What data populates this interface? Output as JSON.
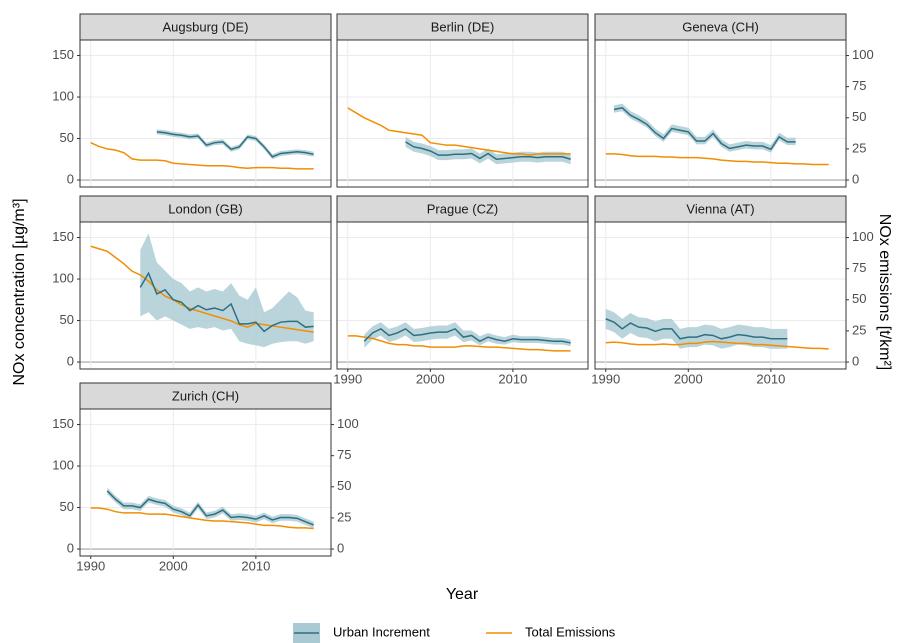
{
  "chart_data": {
    "type": "line",
    "xlabel": "Year",
    "ylabel": "NOx concentration [µg/m³]",
    "y2label": "NOx emissions [t/km²]",
    "xlim": [
      1988.7,
      2019.1
    ],
    "xticks": [
      1990,
      2000,
      2010
    ],
    "ylim": [
      -8.4,
      168.7
    ],
    "yticks": [
      0,
      50,
      100,
      150
    ],
    "y2lim": [
      -5.6,
      112.5
    ],
    "y2ticks": [
      0,
      25,
      50,
      75,
      100
    ],
    "grid": true,
    "legend": "bottom",
    "series": [
      {
        "name": "Urban Increment",
        "color": "#2f6f80",
        "band_color": "#a9c9d3"
      },
      {
        "name": "Total Emissions",
        "color": "#f28e00",
        "axis": "y2"
      }
    ],
    "x": [
      1990,
      1991,
      1992,
      1993,
      1994,
      1995,
      1996,
      1997,
      1998,
      1999,
      2000,
      2001,
      2002,
      2003,
      2004,
      2005,
      2006,
      2007,
      2008,
      2009,
      2010,
      2011,
      2012,
      2013,
      2014,
      2015,
      2016,
      2017
    ],
    "panels": [
      {
        "title": "Augsburg (DE)",
        "values": [
          null,
          null,
          null,
          null,
          null,
          null,
          null,
          null,
          58,
          57,
          55,
          54,
          52,
          53,
          42,
          45,
          46,
          37,
          40,
          52,
          50,
          40,
          28,
          32,
          33,
          34,
          33,
          31
        ],
        "lower": [
          null,
          null,
          null,
          null,
          null,
          null,
          null,
          null,
          55,
          54,
          52,
          51,
          49,
          50,
          39,
          42,
          43,
          34,
          37,
          49,
          47,
          37,
          25,
          29,
          30,
          31,
          30,
          28
        ],
        "upper": [
          null,
          null,
          null,
          null,
          null,
          null,
          null,
          null,
          61,
          60,
          58,
          57,
          55,
          56,
          45,
          48,
          49,
          40,
          43,
          55,
          53,
          43,
          31,
          35,
          36,
          37,
          36,
          34
        ],
        "emissions": [
          30,
          27,
          25,
          24,
          22,
          17,
          16,
          16,
          16,
          15.5,
          13.5,
          13,
          12.5,
          12,
          11.5,
          11.5,
          11.5,
          11,
          10,
          9.5,
          10,
          10,
          10,
          9.5,
          9.5,
          9,
          9,
          9
        ]
      },
      {
        "title": "Berlin (DE)",
        "values": [
          null,
          null,
          null,
          null,
          null,
          null,
          null,
          46,
          40,
          38,
          35,
          30,
          30,
          31,
          31,
          32,
          26,
          32,
          25,
          26,
          27,
          28,
          28,
          27,
          28,
          28,
          28,
          25
        ],
        "lower": [
          null,
          null,
          null,
          null,
          null,
          null,
          null,
          40,
          34,
          32,
          29,
          24,
          24,
          25,
          25,
          26,
          20,
          26,
          19,
          20,
          21,
          22,
          22,
          21,
          22,
          22,
          22,
          19
        ],
        "upper": [
          null,
          null,
          null,
          null,
          null,
          null,
          null,
          52,
          46,
          44,
          41,
          36,
          36,
          37,
          37,
          38,
          32,
          38,
          31,
          32,
          33,
          34,
          34,
          33,
          34,
          34,
          34,
          31
        ],
        "emissions": [
          58,
          54,
          50,
          47,
          44,
          40,
          39,
          38,
          37,
          36,
          30,
          29,
          28,
          28,
          27,
          26,
          25,
          24,
          23,
          22,
          21,
          21,
          20,
          21,
          21,
          21,
          21,
          21
        ]
      },
      {
        "title": "Geneva (CH)",
        "values": [
          null,
          85,
          87,
          78,
          73,
          67,
          57,
          50,
          62,
          60,
          58,
          47,
          47,
          56,
          44,
          38,
          40,
          42,
          41,
          41,
          37,
          52,
          46,
          46,
          null,
          null,
          null,
          null
        ],
        "lower": [
          null,
          81,
          83,
          74,
          69,
          63,
          53,
          46,
          58,
          56,
          54,
          43,
          43,
          52,
          40,
          34,
          36,
          38,
          37,
          37,
          33,
          48,
          42,
          42,
          null,
          null,
          null,
          null
        ],
        "upper": [
          null,
          90,
          92,
          83,
          78,
          72,
          62,
          55,
          67,
          65,
          63,
          52,
          52,
          61,
          49,
          43,
          45,
          47,
          46,
          46,
          42,
          57,
          51,
          51,
          null,
          null,
          null,
          null
        ],
        "emissions": [
          21,
          21,
          20.5,
          19.5,
          19,
          19,
          19,
          18.5,
          18.5,
          18,
          18,
          18,
          17.5,
          17,
          16,
          15.5,
          15,
          15,
          14.5,
          14.5,
          14,
          13.5,
          13.5,
          13,
          13,
          12.5,
          12.5,
          12.5
        ]
      },
      {
        "title": "London (GB)",
        "values": [
          null,
          null,
          null,
          null,
          null,
          null,
          90,
          107,
          82,
          87,
          75,
          72,
          62,
          68,
          63,
          65,
          62,
          70,
          46,
          46,
          48,
          37,
          44,
          48,
          49,
          49,
          42,
          43
        ],
        "lower": [
          null,
          null,
          null,
          null,
          null,
          null,
          55,
          60,
          50,
          55,
          50,
          45,
          40,
          42,
          40,
          42,
          38,
          40,
          25,
          22,
          20,
          18,
          22,
          24,
          25,
          25,
          22,
          25
        ],
        "upper": [
          null,
          null,
          null,
          null,
          null,
          null,
          135,
          155,
          120,
          110,
          100,
          95,
          85,
          90,
          85,
          88,
          85,
          95,
          80,
          75,
          90,
          60,
          65,
          75,
          85,
          78,
          62,
          60
        ],
        "emissions": [
          93,
          91,
          89,
          84,
          79,
          73,
          70,
          65,
          58,
          53,
          50,
          46,
          43,
          41,
          39,
          37,
          35,
          33,
          30,
          28,
          31,
          30,
          29,
          28,
          27,
          26,
          25,
          24
        ]
      },
      {
        "title": "Prague (CZ)",
        "values": [
          null,
          null,
          25,
          35,
          40,
          32,
          35,
          40,
          32,
          33,
          35,
          36,
          36,
          40,
          30,
          32,
          25,
          30,
          27,
          25,
          28,
          27,
          27,
          27,
          26,
          25,
          25,
          23
        ],
        "lower": [
          null,
          null,
          17,
          27,
          32,
          24,
          27,
          32,
          24,
          25,
          27,
          28,
          28,
          32,
          24,
          26,
          20,
          25,
          22,
          21,
          24,
          23,
          23,
          23,
          22,
          21,
          21,
          19
        ],
        "upper": [
          null,
          null,
          33,
          43,
          48,
          40,
          43,
          48,
          40,
          41,
          43,
          44,
          44,
          48,
          38,
          38,
          31,
          35,
          32,
          30,
          33,
          31,
          31,
          31,
          30,
          29,
          29,
          27
        ],
        "emissions": [
          21,
          21,
          20,
          19,
          17,
          15,
          14,
          14,
          13,
          13,
          12,
          12,
          12,
          12,
          13,
          13,
          12.5,
          12,
          12,
          11.5,
          11,
          10.5,
          10,
          10,
          9.5,
          9,
          9,
          9
        ]
      },
      {
        "title": "Vienna (AT)",
        "values": [
          52,
          48,
          40,
          47,
          42,
          41,
          37,
          40,
          40,
          28,
          30,
          30,
          33,
          32,
          28,
          30,
          33,
          32,
          30,
          30,
          28,
          28,
          28,
          null,
          null,
          null,
          null,
          null
        ],
        "lower": [
          40,
          36,
          28,
          35,
          30,
          29,
          25,
          28,
          28,
          16,
          18,
          18,
          21,
          20,
          16,
          18,
          21,
          20,
          18,
          18,
          16,
          16,
          16,
          null,
          null,
          null,
          null,
          null
        ],
        "upper": [
          64,
          60,
          52,
          59,
          54,
          53,
          49,
          52,
          52,
          40,
          42,
          42,
          45,
          44,
          40,
          42,
          45,
          44,
          42,
          42,
          40,
          40,
          40,
          null,
          null,
          null,
          null,
          null
        ],
        "emissions": [
          15.5,
          16,
          15.5,
          14.5,
          14,
          14,
          14,
          14.5,
          14,
          14,
          15,
          15,
          16,
          16.5,
          16,
          15.5,
          15,
          15,
          14,
          14,
          13.5,
          13,
          12.5,
          12,
          11.5,
          11,
          11,
          10.5
        ]
      },
      {
        "title": "Zurich (CH)",
        "values": [
          null,
          null,
          70,
          60,
          52,
          52,
          50,
          60,
          57,
          55,
          48,
          45,
          40,
          53,
          40,
          42,
          47,
          38,
          39,
          38,
          36,
          40,
          35,
          38,
          38,
          37,
          33,
          29
        ],
        "lower": [
          null,
          null,
          66,
          56,
          48,
          48,
          46,
          56,
          53,
          51,
          44,
          41,
          36,
          49,
          36,
          38,
          43,
          34,
          35,
          34,
          32,
          36,
          31,
          34,
          34,
          33,
          29,
          25
        ],
        "upper": [
          null,
          null,
          74,
          64,
          56,
          56,
          54,
          64,
          61,
          59,
          52,
          49,
          44,
          57,
          44,
          46,
          51,
          42,
          43,
          42,
          40,
          44,
          39,
          42,
          42,
          41,
          37,
          33
        ],
        "emissions": [
          33,
          33,
          32,
          30,
          29,
          29,
          29,
          28,
          28,
          28,
          27,
          26,
          25,
          24,
          23,
          22.5,
          22.5,
          22,
          21.5,
          21,
          20,
          19,
          19,
          18.5,
          17.5,
          17,
          17,
          16.5
        ]
      }
    ]
  }
}
